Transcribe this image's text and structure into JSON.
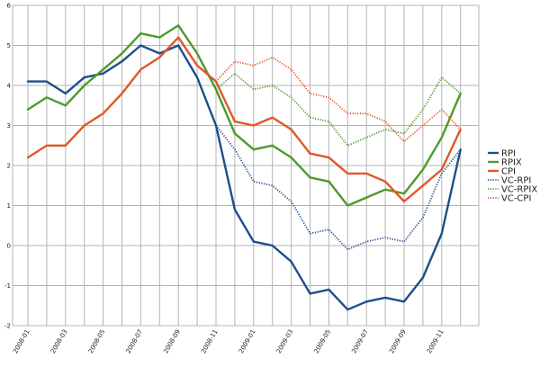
{
  "chart_data": {
    "type": "line",
    "title": "",
    "xlabel": "",
    "ylabel": "",
    "ylim": [
      -2,
      6
    ],
    "yticks": [
      -2,
      -1,
      0,
      1,
      2,
      3,
      4,
      5,
      6
    ],
    "grid": true,
    "legend_position": "right",
    "x": [
      "2008-01",
      "2008-02",
      "2008-03",
      "2008-04",
      "2008-05",
      "2008-06",
      "2008-07",
      "2008-08",
      "2008-09",
      "2008-10",
      "2008-11",
      "2008-12",
      "2009-01",
      "2009-02",
      "2009-03",
      "2009-04",
      "2009-05",
      "2009-06",
      "2009-07",
      "2009-08",
      "2009-09",
      "2009-10",
      "2009-11",
      "2009-12"
    ],
    "xtick_labels": [
      "2008-01",
      "2008-03",
      "2008-05",
      "2008-07",
      "2008-09",
      "2008-11",
      "2009-01",
      "2009-03",
      "2009-05",
      "2009-07",
      "2009-09",
      "2009-11"
    ],
    "series": [
      {
        "name": "RPI",
        "color": "#1f4e8c",
        "dash": "solid",
        "values": [
          4.1,
          4.1,
          3.8,
          4.2,
          4.3,
          4.6,
          5.0,
          4.8,
          5.0,
          4.2,
          3.0,
          0.9,
          0.1,
          0.0,
          -0.4,
          -1.2,
          -1.1,
          -1.6,
          -1.4,
          -1.3,
          -1.4,
          -0.8,
          0.3,
          2.4
        ]
      },
      {
        "name": "RPIX",
        "color": "#4f9a2b",
        "dash": "solid",
        "values": [
          3.4,
          3.7,
          3.5,
          4.0,
          4.4,
          4.8,
          5.3,
          5.2,
          5.5,
          4.8,
          3.9,
          2.8,
          2.4,
          2.5,
          2.2,
          1.7,
          1.6,
          1.0,
          1.2,
          1.4,
          1.3,
          1.9,
          2.7,
          3.8
        ]
      },
      {
        "name": "CPI",
        "color": "#e0572a",
        "dash": "solid",
        "values": [
          2.2,
          2.5,
          2.5,
          3.0,
          3.3,
          3.8,
          4.4,
          4.7,
          5.2,
          4.5,
          4.1,
          3.1,
          3.0,
          3.2,
          2.9,
          2.3,
          2.2,
          1.8,
          1.8,
          1.6,
          1.1,
          1.5,
          1.9,
          2.9
        ]
      },
      {
        "name": "VC-RPI",
        "color": "#1f4e8c",
        "dash": "dotted",
        "values": [
          null,
          null,
          null,
          null,
          null,
          null,
          null,
          null,
          null,
          null,
          3.0,
          2.4,
          1.6,
          1.5,
          1.1,
          0.3,
          0.4,
          -0.1,
          0.1,
          0.2,
          0.1,
          0.7,
          1.8,
          2.4
        ]
      },
      {
        "name": "VC-RPIX",
        "color": "#4f9a2b",
        "dash": "dotted",
        "values": [
          null,
          null,
          null,
          null,
          null,
          null,
          null,
          null,
          null,
          null,
          3.9,
          4.3,
          3.9,
          4.0,
          3.7,
          3.2,
          3.1,
          2.5,
          2.7,
          2.9,
          2.8,
          3.4,
          4.2,
          3.8
        ]
      },
      {
        "name": "VC-CPI",
        "color": "#e0572a",
        "dash": "dotted",
        "values": [
          null,
          null,
          null,
          null,
          null,
          null,
          null,
          null,
          null,
          null,
          4.1,
          4.6,
          4.5,
          4.7,
          4.4,
          3.8,
          3.7,
          3.3,
          3.3,
          3.1,
          2.6,
          3.0,
          3.4,
          2.9
        ]
      }
    ]
  }
}
